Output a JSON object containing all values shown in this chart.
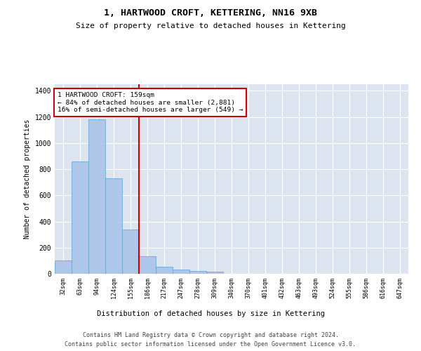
{
  "title": "1, HARTWOOD CROFT, KETTERING, NN16 9XB",
  "subtitle": "Size of property relative to detached houses in Kettering",
  "xlabel": "Distribution of detached houses by size in Kettering",
  "ylabel": "Number of detached properties",
  "categories": [
    "32sqm",
    "63sqm",
    "94sqm",
    "124sqm",
    "155sqm",
    "186sqm",
    "217sqm",
    "247sqm",
    "278sqm",
    "309sqm",
    "340sqm",
    "370sqm",
    "401sqm",
    "432sqm",
    "463sqm",
    "493sqm",
    "524sqm",
    "555sqm",
    "586sqm",
    "616sqm",
    "647sqm"
  ],
  "values": [
    100,
    860,
    1180,
    730,
    340,
    135,
    55,
    30,
    20,
    15,
    0,
    0,
    0,
    0,
    0,
    0,
    0,
    0,
    0,
    0,
    0
  ],
  "bar_color": "#aec6e8",
  "bar_edgecolor": "#5a9fd4",
  "vline_x": 4.5,
  "vline_color": "#cc0000",
  "annotation_line1": "1 HARTWOOD CROFT: 159sqm",
  "annotation_line2": "← 84% of detached houses are smaller (2,881)",
  "annotation_line3": "16% of semi-detached houses are larger (549) →",
  "annotation_box_edgecolor": "#cc0000",
  "ylim": [
    0,
    1450
  ],
  "yticks": [
    0,
    200,
    400,
    600,
    800,
    1000,
    1200,
    1400
  ],
  "bg_color": "#dce4f0",
  "grid_color": "#ffffff",
  "footer1": "Contains HM Land Registry data © Crown copyright and database right 2024.",
  "footer2": "Contains public sector information licensed under the Open Government Licence v3.0."
}
